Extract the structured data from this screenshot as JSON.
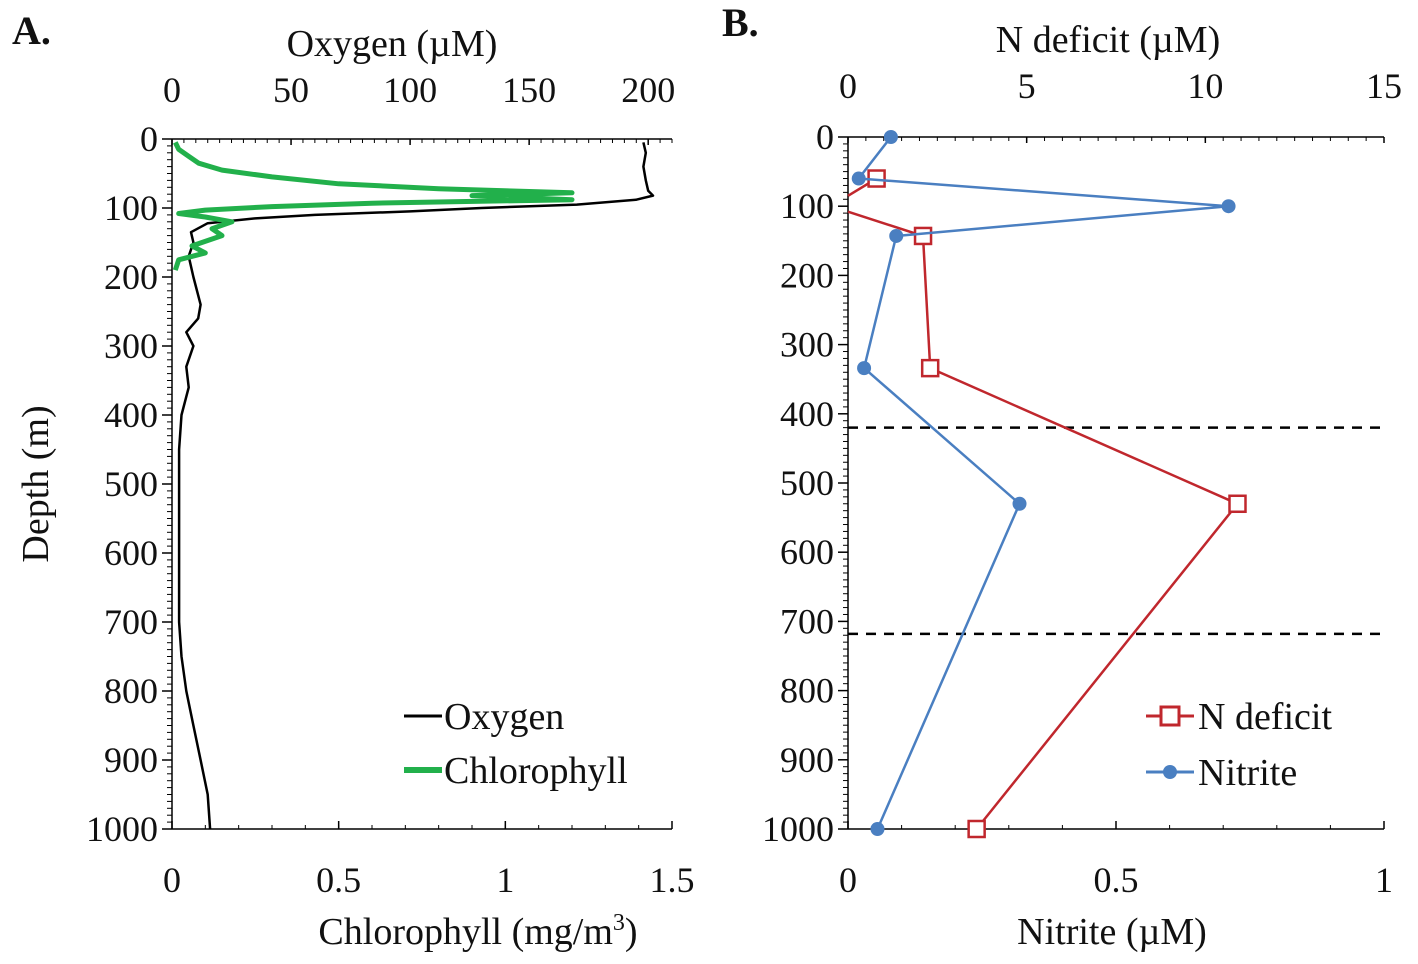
{
  "chart_data": [
    {
      "panel_label": "A.",
      "type": "line",
      "y_axis": {
        "label": "Depth (m)",
        "range": [
          0,
          1000
        ],
        "inverted": true,
        "ticks": [
          "0",
          "100",
          "200",
          "300",
          "400",
          "500",
          "600",
          "700",
          "800",
          "900",
          "1000"
        ]
      },
      "top_axis": {
        "label": "Oxygen (µM)",
        "range": [
          0,
          210
        ],
        "ticks": [
          {
            "value": 0,
            "label": "0"
          },
          {
            "value": 50,
            "label": "50"
          },
          {
            "value": 100,
            "label": "100"
          },
          {
            "value": 150,
            "label": "150"
          },
          {
            "value": 200,
            "label": "200"
          }
        ]
      },
      "bottom_axis": {
        "label_main": "Chlorophyll (mg/m",
        "label_sup": "3",
        "label_end": ")",
        "range": [
          0,
          1.5
        ],
        "ticks": [
          {
            "value": 0,
            "label": "0"
          },
          {
            "value": 0.5,
            "label": "0.5"
          },
          {
            "value": 1,
            "label": "1"
          },
          {
            "value": 1.5,
            "label": "1.5"
          }
        ]
      },
      "series": [
        {
          "name": "Oxygen",
          "axis": "top",
          "color": "#000000",
          "points": [
            [
              198,
              5
            ],
            [
              199,
              20
            ],
            [
              198,
              40
            ],
            [
              199,
              60
            ],
            [
              200,
              75
            ],
            [
              202,
              82
            ],
            [
              195,
              88
            ],
            [
              170,
              95
            ],
            [
              130,
              100
            ],
            [
              100,
              105
            ],
            [
              60,
              110
            ],
            [
              35,
              115
            ],
            [
              15,
              122
            ],
            [
              8,
              135
            ],
            [
              9,
              150
            ],
            [
              7,
              170
            ],
            [
              9,
              200
            ],
            [
              12,
              240
            ],
            [
              11,
              260
            ],
            [
              6,
              280
            ],
            [
              9,
              300
            ],
            [
              6,
              330
            ],
            [
              7,
              360
            ],
            [
              4,
              400
            ],
            [
              3,
              450
            ],
            [
              3,
              500
            ],
            [
              3,
              550
            ],
            [
              3,
              600
            ],
            [
              3,
              650
            ],
            [
              3,
              700
            ],
            [
              4,
              750
            ],
            [
              6,
              800
            ],
            [
              9,
              850
            ],
            [
              12,
              900
            ],
            [
              15,
              950
            ],
            [
              16,
              1000
            ]
          ]
        },
        {
          "name": "Chlorophyll",
          "axis": "bottom",
          "color": "#22b04b",
          "points": [
            [
              0.01,
              5
            ],
            [
              0.02,
              15
            ],
            [
              0.05,
              25
            ],
            [
              0.08,
              35
            ],
            [
              0.15,
              45
            ],
            [
              0.3,
              55
            ],
            [
              0.5,
              65
            ],
            [
              0.8,
              72
            ],
            [
              1.2,
              78
            ],
            [
              0.9,
              82
            ],
            [
              1.2,
              88
            ],
            [
              0.6,
              93
            ],
            [
              0.3,
              98
            ],
            [
              0.1,
              103
            ],
            [
              0.02,
              108
            ],
            [
              0.1,
              113
            ],
            [
              0.18,
              120
            ],
            [
              0.12,
              130
            ],
            [
              0.15,
              140
            ],
            [
              0.06,
              155
            ],
            [
              0.1,
              165
            ],
            [
              0.02,
              175
            ],
            [
              0.01,
              190
            ]
          ]
        }
      ],
      "legend": {
        "position": "bottom-right",
        "entries": [
          {
            "label": "Oxygen",
            "color": "#000000"
          },
          {
            "label": "Chlorophyll",
            "color": "#22b04b"
          }
        ]
      }
    },
    {
      "panel_label": "B.",
      "type": "line",
      "y_axis": {
        "label": "",
        "range": [
          0,
          1000
        ],
        "inverted": true,
        "ticks": [
          "0",
          "100",
          "200",
          "300",
          "400",
          "500",
          "600",
          "700",
          "800",
          "900",
          "1000"
        ]
      },
      "top_axis": {
        "label": "N deficit (µM)",
        "range": [
          0,
          15
        ],
        "ticks": [
          {
            "value": 0,
            "label": "0"
          },
          {
            "value": 5,
            "label": "5"
          },
          {
            "value": 10,
            "label": "10"
          },
          {
            "value": 15,
            "label": "15"
          }
        ]
      },
      "bottom_axis": {
        "label_main": "Nitrite (µM)",
        "range": [
          0,
          1
        ],
        "ticks": [
          {
            "value": 0,
            "label": "0"
          },
          {
            "value": 0.5,
            "label": "0.5"
          },
          {
            "value": 1,
            "label": "1"
          }
        ]
      },
      "series": [
        {
          "name": "N deficit",
          "axis": "top",
          "color": "#c0272d",
          "marker": "open-square",
          "points": [
            [
              0.8,
              60
            ],
            [
              0,
              85
            ]
          ],
          "points_b": [
            [
              0,
              108
            ],
            [
              2.1,
              143
            ],
            [
              2.3,
              334
            ],
            [
              10.9,
              530
            ],
            [
              3.6,
              1000
            ]
          ],
          "markers": [
            [
              0.8,
              60
            ],
            [
              2.1,
              143
            ],
            [
              2.3,
              334
            ],
            [
              10.9,
              530
            ],
            [
              3.6,
              1000
            ]
          ]
        },
        {
          "name": "Nitrite",
          "axis": "bottom",
          "color": "#4a7fc1",
          "marker": "filled-circle",
          "points": [
            [
              0.08,
              0
            ],
            [
              0.02,
              60
            ],
            [
              0.71,
              100
            ],
            [
              0.09,
              143
            ],
            [
              0.03,
              334
            ],
            [
              0.32,
              530
            ],
            [
              0.055,
              1000
            ]
          ]
        }
      ],
      "reference_lines": [
        {
          "depth": 420,
          "style": "dashed"
        },
        {
          "depth": 718,
          "style": "dashed"
        }
      ],
      "legend": {
        "position": "bottom-right",
        "entries": [
          {
            "label": "N deficit",
            "color": "#c0272d"
          },
          {
            "label": "Nitrite",
            "color": "#4a7fc1"
          }
        ]
      }
    }
  ]
}
